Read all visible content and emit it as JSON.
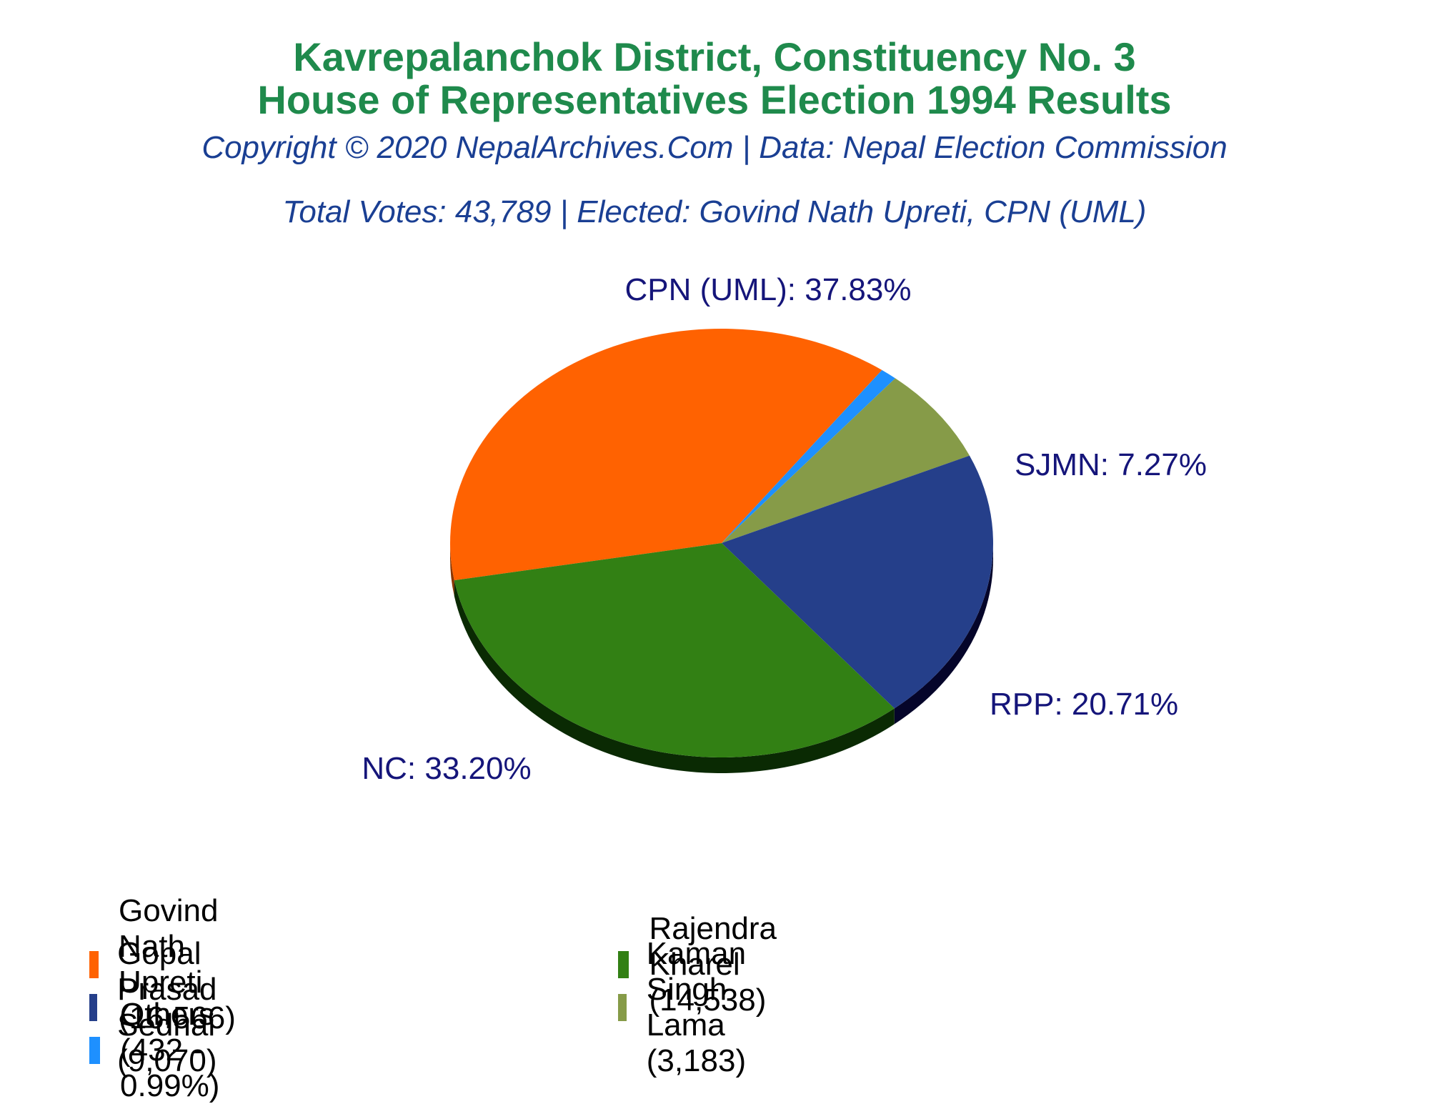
{
  "chart_data": {
    "type": "pie",
    "title": "Kavrepalanchok District, Constituency No. 3",
    "title_line2": "House of Representatives Election 1994 Results",
    "copyright": "Copyright © 2020 NepalArchives.Com | Data: Nepal Election Commission",
    "summary": "Total Votes: 43,789 | Elected: Govind Nath Upreti, CPN (UML)",
    "slices": [
      {
        "party": "CPN (UML)",
        "label": "CPN (UML): 37.83%",
        "percent": 37.83,
        "color": "#ff6201",
        "side_color": "#8a3500"
      },
      {
        "party": "Others",
        "label": "",
        "percent": 0.99,
        "color": "#1e90ff",
        "side_color": "#0f4d8a"
      },
      {
        "party": "SJMN",
        "label": "SJMN: 7.27%",
        "percent": 7.27,
        "color": "#869b48",
        "side_color": "#3c4620"
      },
      {
        "party": "RPP",
        "label": "RPP: 20.71%",
        "percent": 20.71,
        "color": "#253f8a",
        "side_color": "#05052a"
      },
      {
        "party": "NC",
        "label": "NC: 33.20%",
        "percent": 33.2,
        "color": "#328014",
        "side_color": "#0a2a03"
      }
    ],
    "legend": [
      {
        "text": "Govind Nath Upreti (16,566)",
        "color": "#ff6201"
      },
      {
        "text": "Rajendra Kharel (14,538)",
        "color": "#328014"
      },
      {
        "text": "Gopal Prasad Sedhai (9,070)",
        "color": "#253f8a"
      },
      {
        "text": "Kaman Singh Lama (3,183)",
        "color": "#869b48"
      },
      {
        "text": "Others (432 - 0.99%)",
        "color": "#1e90ff"
      }
    ]
  }
}
